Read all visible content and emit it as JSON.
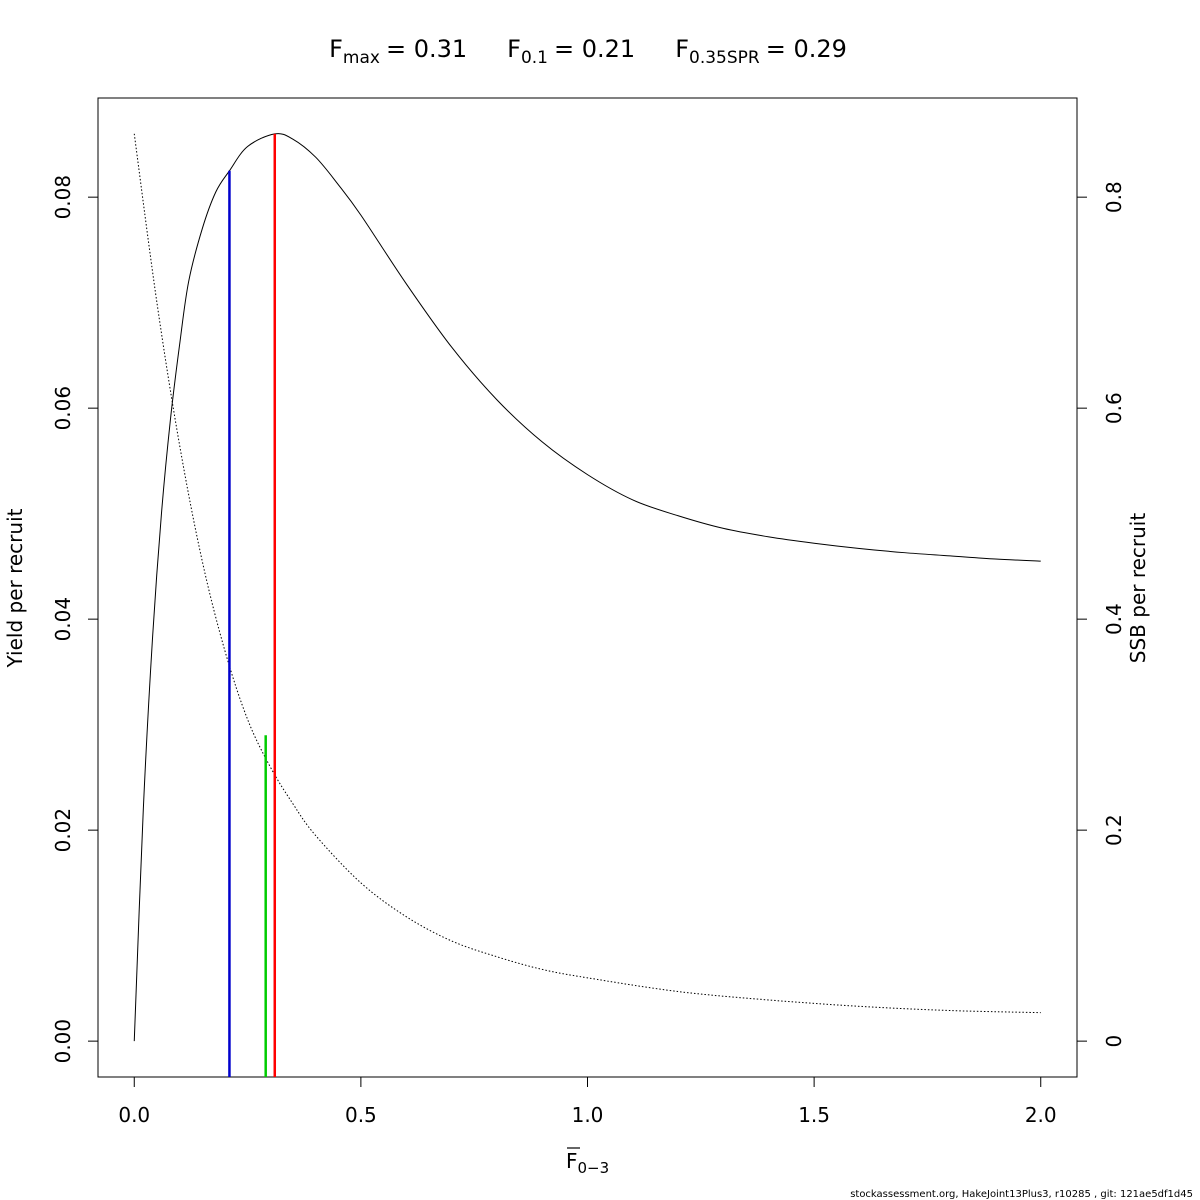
{
  "chart_data": {
    "type": "line",
    "title": {
      "fmax": {
        "base": "F",
        "sub": "max",
        "value": "= 0.31"
      },
      "f01": {
        "base": "F",
        "sub": "0.1",
        "value": "= 0.21"
      },
      "fspr": {
        "base": "F",
        "sub": "0.35SPR",
        "value": "= 0.29"
      }
    },
    "xlabel": {
      "base": "F",
      "sub": "0−3"
    },
    "ylabel_left": "Yield per recruit",
    "ylabel_right": "SSB per recruit",
    "xlim": [
      -0.08,
      2.08
    ],
    "ylim_left": [
      -0.0034,
      0.0894
    ],
    "ylim_right": [
      -0.034,
      0.894
    ],
    "x_ticks": [
      0.0,
      0.5,
      1.0,
      1.5,
      2.0
    ],
    "x_tick_labels": [
      "0.0",
      "0.5",
      "1.0",
      "1.5",
      "2.0"
    ],
    "y_left_ticks": [
      0.0,
      0.02,
      0.04,
      0.06,
      0.08
    ],
    "y_left_tick_labels": [
      "0.00",
      "0.02",
      "0.04",
      "0.06",
      "0.08"
    ],
    "y_right_ticks": [
      0,
      0.2,
      0.4,
      0.6,
      0.8
    ],
    "y_right_tick_labels": [
      "0",
      "0.2",
      "0.4",
      "0.6",
      "0.8"
    ],
    "series": [
      {
        "role": "yield",
        "axis": "left",
        "style": "solid",
        "color": "#000000",
        "x": [
          0,
          0.02,
          0.04,
          0.06,
          0.08,
          0.1,
          0.12,
          0.15,
          0.18,
          0.21,
          0.25,
          0.31,
          0.35,
          0.4,
          0.45,
          0.5,
          0.6,
          0.7,
          0.8,
          0.9,
          1.0,
          1.1,
          1.2,
          1.3,
          1.4,
          1.5,
          1.6,
          1.7,
          1.8,
          1.9,
          2.0
        ],
        "y": [
          0,
          0.022,
          0.038,
          0.05,
          0.059,
          0.066,
          0.072,
          0.077,
          0.0805,
          0.0825,
          0.0848,
          0.086,
          0.0855,
          0.0838,
          0.0812,
          0.0783,
          0.0718,
          0.0658,
          0.0608,
          0.0568,
          0.0537,
          0.0513,
          0.0498,
          0.0486,
          0.0478,
          0.0472,
          0.0467,
          0.0463,
          0.046,
          0.0457,
          0.0455
        ]
      },
      {
        "role": "ssb",
        "axis": "right",
        "style": "dotted",
        "color": "#000000",
        "x": [
          0,
          0.05,
          0.1,
          0.15,
          0.2,
          0.25,
          0.3,
          0.35,
          0.4,
          0.5,
          0.6,
          0.7,
          0.8,
          0.9,
          1.0,
          1.2,
          1.4,
          1.6,
          1.8,
          2.0
        ],
        "y": [
          0.86,
          0.7,
          0.565,
          0.455,
          0.37,
          0.305,
          0.26,
          0.225,
          0.195,
          0.15,
          0.118,
          0.095,
          0.08,
          0.068,
          0.06,
          0.047,
          0.039,
          0.033,
          0.029,
          0.027
        ]
      }
    ],
    "reference_lines": [
      {
        "role": "f01",
        "x": 0.21,
        "axis": "left",
        "y_top": 0.0825,
        "color": "#0000cc"
      },
      {
        "role": "fspr",
        "x": 0.29,
        "axis": "left",
        "y_top": 0.029,
        "color": "#00cc00"
      },
      {
        "role": "fmax",
        "x": 0.31,
        "axis": "left",
        "y_top": 0.086,
        "color": "#ff0000"
      }
    ]
  },
  "footer": "stockassessment.org, HakeJoint13Plus3, r10285 , git: 121ae5df1d45"
}
